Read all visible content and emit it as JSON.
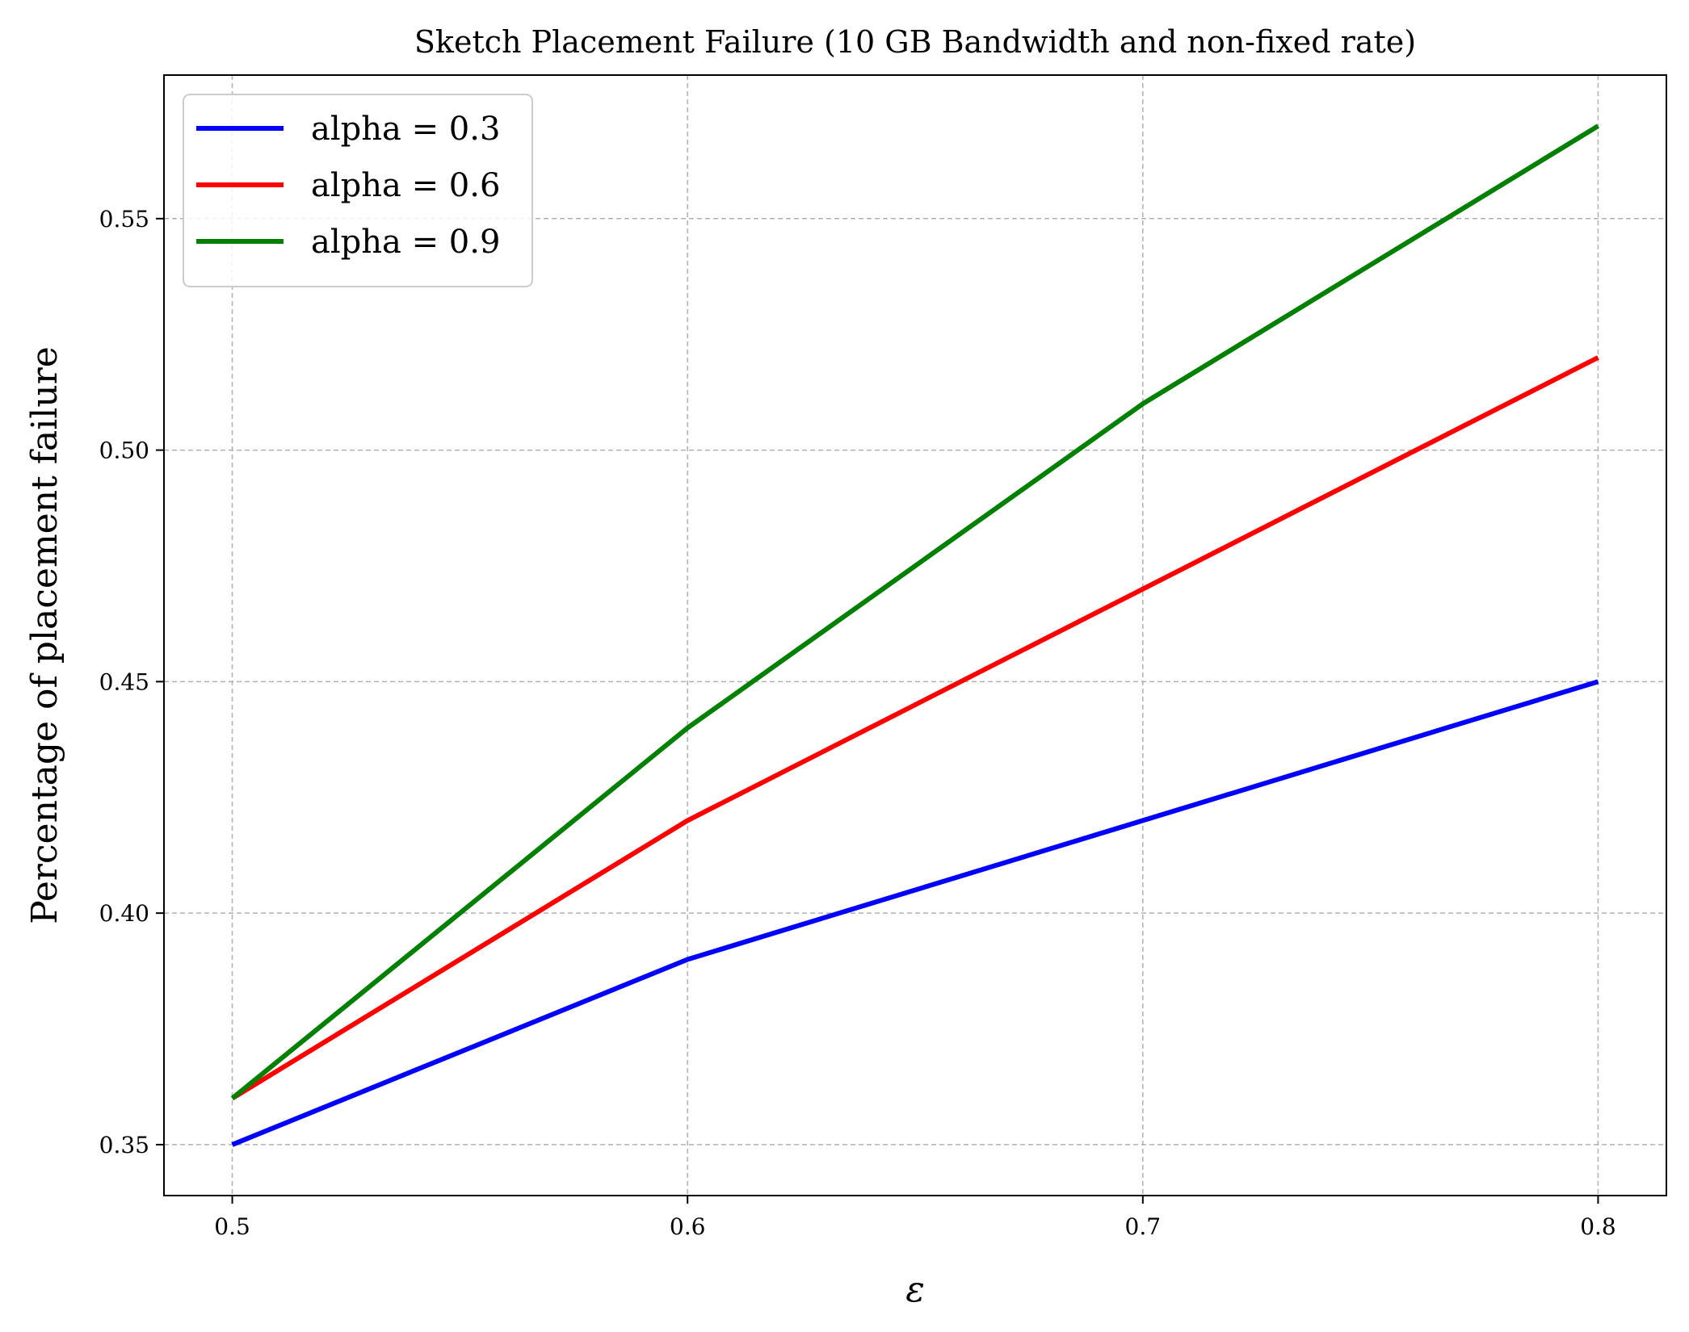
{
  "chart_data": {
    "type": "line",
    "title": "Sketch Placement Failure (10 GB Bandwidth and non-fixed rate)",
    "xlabel": "ε",
    "ylabel": "Percentage of placement failure",
    "x": [
      0.5,
      0.6,
      0.7,
      0.8
    ],
    "x_ticks": [
      "0.5",
      "0.6",
      "0.7",
      "0.8"
    ],
    "y_ticks": [
      "0.35",
      "0.40",
      "0.45",
      "0.50",
      "0.55"
    ],
    "xlim": [
      0.485,
      0.815
    ],
    "ylim": [
      0.339,
      0.581
    ],
    "grid": true,
    "legend_position": "upper-left",
    "series": [
      {
        "name": "alpha = 0.3",
        "color": "#0000ff",
        "values": [
          0.35,
          0.39,
          0.42,
          0.45
        ]
      },
      {
        "name": "alpha = 0.6",
        "color": "#ff0000",
        "values": [
          0.36,
          0.42,
          0.47,
          0.52
        ]
      },
      {
        "name": "alpha = 0.9",
        "color": "#008000",
        "values": [
          0.36,
          0.44,
          0.51,
          0.57
        ]
      }
    ]
  }
}
